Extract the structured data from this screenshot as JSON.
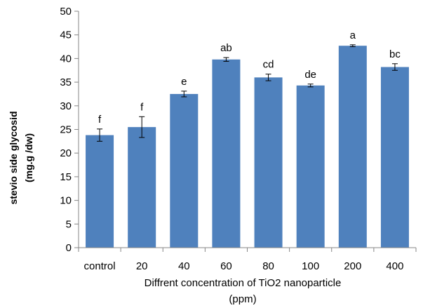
{
  "chart_data": {
    "type": "bar",
    "title": "",
    "xlabel_line1": "Diffrent concentration of TiO2 nanoparticle",
    "xlabel_line2": "(ppm)",
    "ylabel_line1": "stevio side glycosid",
    "ylabel_line2": "(mg.g /dw)",
    "ylim": [
      0,
      50
    ],
    "yticks": [
      0,
      5,
      10,
      15,
      20,
      25,
      30,
      35,
      40,
      45,
      50
    ],
    "grid": false,
    "categories": [
      "control",
      "20",
      "40",
      "60",
      "80",
      "100",
      "200",
      "400"
    ],
    "values": [
      23.8,
      25.5,
      32.5,
      39.8,
      36.0,
      34.3,
      42.7,
      38.2
    ],
    "errors": [
      1.3,
      2.2,
      0.6,
      0.4,
      0.7,
      0.3,
      0.2,
      0.7
    ],
    "letters": [
      "f",
      "f",
      "e",
      "ab",
      "cd",
      "de",
      "a",
      "bc"
    ],
    "bar_color": "#4f81bd"
  }
}
